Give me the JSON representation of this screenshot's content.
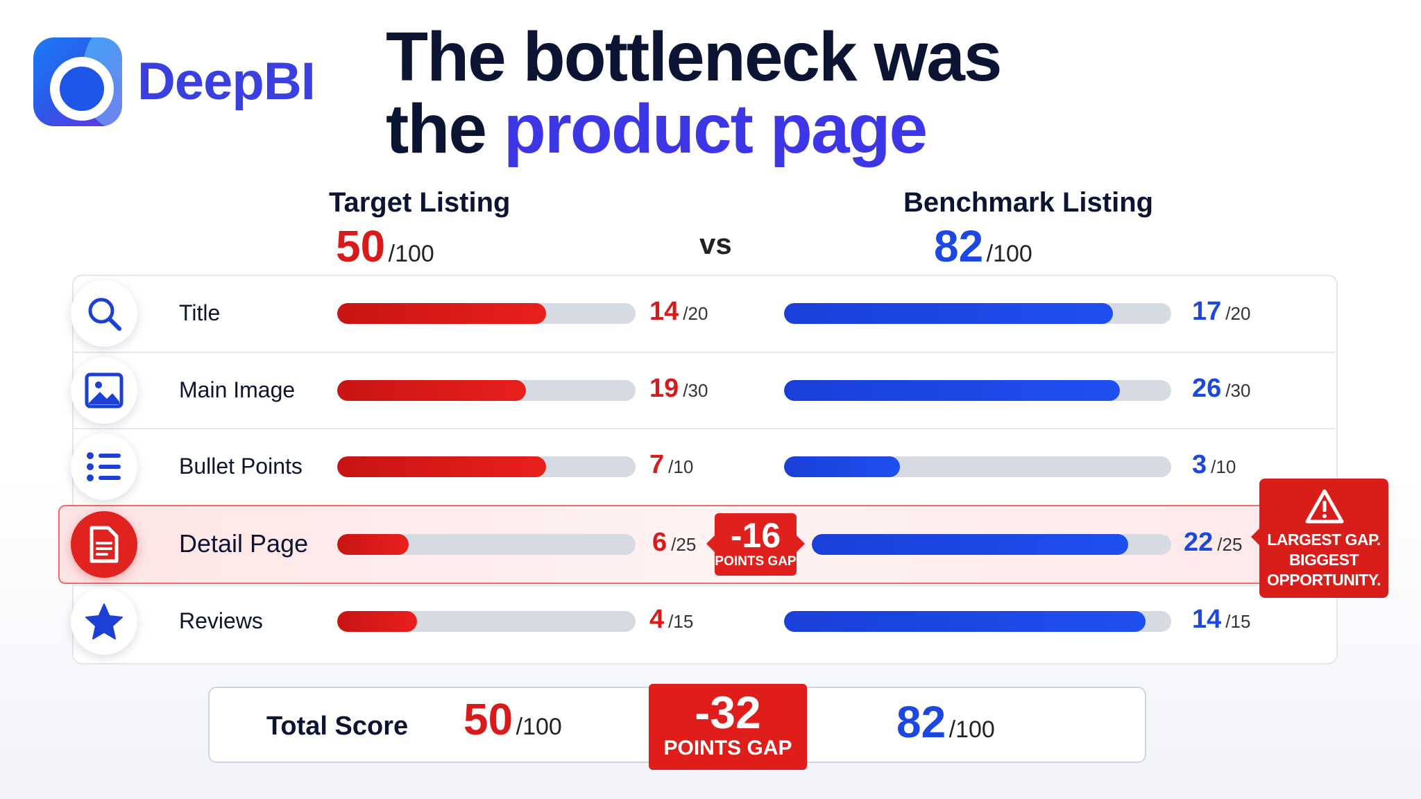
{
  "brand": {
    "name": "DeepBI"
  },
  "headline": {
    "line1": "The bottleneck was",
    "line2_plain": "the ",
    "line2_accent": "product page"
  },
  "colors": {
    "target": "#d81a1a",
    "benchmark": "#1c47e0",
    "accent": "#3d36e6"
  },
  "target": {
    "title": "Target Listing",
    "score": "50",
    "max": "/100"
  },
  "benchmark": {
    "title": "Benchmark Listing",
    "score": "82",
    "max": "/100"
  },
  "vs": "vs",
  "rows": [
    {
      "icon": "search-icon",
      "label": "Title",
      "target": 14,
      "benchmark": 17,
      "max": 20,
      "target_text": "14",
      "benchmark_text": "17",
      "max_text": "/20"
    },
    {
      "icon": "image-icon",
      "label": "Main Image",
      "target": 19,
      "benchmark": 26,
      "max": 30,
      "target_text": "19",
      "benchmark_text": "26",
      "max_text": "/30"
    },
    {
      "icon": "list-icon",
      "label": "Bullet Points",
      "target": 7,
      "benchmark": 3,
      "max": 10,
      "target_text": "7",
      "benchmark_text": "3",
      "max_text": "/10"
    },
    {
      "icon": "document-icon",
      "label": "Detail Page",
      "target": 6,
      "benchmark": 22,
      "max": 25,
      "target_text": "6",
      "benchmark_text": "22",
      "max_text": "/25",
      "highlight": true
    },
    {
      "icon": "star-icon",
      "label": "Reviews",
      "target": 4,
      "benchmark": 14,
      "max": 15,
      "target_text": "4",
      "benchmark_text": "14",
      "max_text": "/15"
    }
  ],
  "row_gap": {
    "value": "-16",
    "text": "POINTS GAP"
  },
  "callout": {
    "icon": "warning-icon",
    "line1": "LARGEST GAP.",
    "line2": "BIGGEST",
    "line3": "OPPORTUNITY."
  },
  "total": {
    "label": "Total Score",
    "target": "50",
    "benchmark": "82",
    "max": "/100",
    "gap_value": "-32",
    "gap_text": "POINTS GAP"
  }
}
